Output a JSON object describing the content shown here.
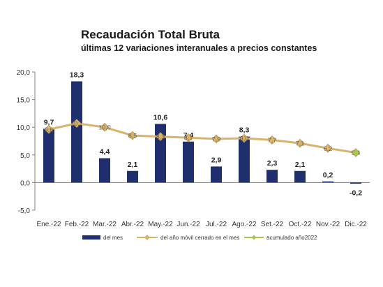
{
  "chart_data": {
    "type": "bar",
    "title": "Recaudación Total Bruta",
    "subtitle": "últimas 12 variaciones interanuales a precios constantes",
    "categories": [
      "Ene.-22",
      "Feb.-22",
      "Mar.-22",
      "Abr.-22",
      "May.-22",
      "Jun.-22",
      "Jul.-22",
      "Ago.-22",
      "Set.-22",
      "Oct.-22",
      "Nov.-22",
      "Dic.-22"
    ],
    "y_ticks": [
      "20,0",
      "15,0",
      "10,0",
      "5,0",
      "0,0",
      "-5,0"
    ],
    "ylim": [
      -5,
      20
    ],
    "grid": false,
    "legend_position": "bottom",
    "series": [
      {
        "name": "del mes",
        "kind": "bar",
        "color": "#1f2f6e",
        "values": [
          9.7,
          18.3,
          4.4,
          2.1,
          10.6,
          7.4,
          2.9,
          8.3,
          2.3,
          2.1,
          0.2,
          -0.2
        ],
        "labels": [
          "9,7",
          "18,3",
          "4,4",
          "2,1",
          "10,6",
          "7,4",
          "2,9",
          "8,3",
          "2,3",
          "2,1",
          "0,2",
          "-0,2"
        ]
      },
      {
        "name": "del año móvil cerrado en el mes",
        "kind": "line",
        "color": "#d9b36a",
        "values": [
          9.6,
          10.7,
          10.0,
          8.5,
          8.3,
          8.1,
          7.9,
          8.0,
          7.7,
          7.1,
          6.2,
          5.4
        ],
        "labels": [
          "9,6",
          "10,7",
          "10,0",
          "8,5",
          "8,3",
          "8,1",
          "7,9",
          "8,0",
          "7,7",
          "7,1",
          "6,2",
          "5,4"
        ]
      },
      {
        "name": "acumulado año2022",
        "kind": "point",
        "color": "#a8c64a",
        "values": [
          null,
          null,
          null,
          null,
          null,
          null,
          null,
          null,
          null,
          null,
          null,
          5.4
        ],
        "labels": [
          null,
          null,
          null,
          null,
          null,
          null,
          null,
          null,
          null,
          null,
          null,
          null
        ]
      }
    ]
  }
}
